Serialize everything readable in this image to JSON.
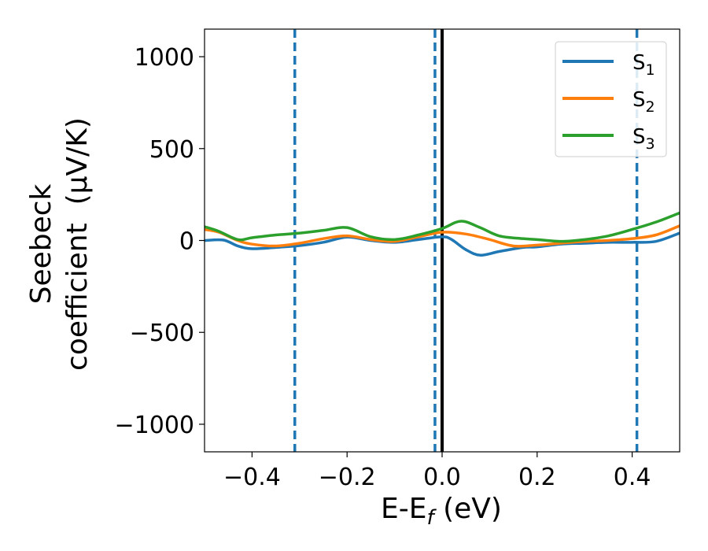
{
  "chart_data": {
    "type": "line",
    "xlabel": {
      "main": "E-E",
      "sub": "f",
      "suffix": " (eV)"
    },
    "ylabel": {
      "line1": "Seebeck",
      "line2": "coefficient  (μV/K)"
    },
    "xlim": [
      -0.5,
      0.5
    ],
    "ylim": [
      -1150,
      1150
    ],
    "xticks": [
      -0.4,
      -0.2,
      0.0,
      0.2,
      0.4
    ],
    "xtick_labels": [
      "−0.4",
      "−0.2",
      "0.0",
      "0.2",
      "0.4"
    ],
    "yticks": [
      -1000,
      -500,
      0,
      500,
      1000
    ],
    "ytick_labels": [
      "−1000",
      "−500",
      "0",
      "500",
      "1000"
    ],
    "grid": false,
    "legend_position": "top-right",
    "vlines": [
      {
        "x": -0.31,
        "style": "dashed",
        "color": "#1f77b4"
      },
      {
        "x": -0.015,
        "style": "dashed",
        "color": "#1f77b4"
      },
      {
        "x": 0.0,
        "style": "solid",
        "color": "#000000"
      },
      {
        "x": 0.41,
        "style": "dashed",
        "color": "#1f77b4"
      }
    ],
    "series": [
      {
        "name": "S",
        "sub": "1",
        "color": "#1f77b4",
        "x": [
          -0.5,
          -0.46,
          -0.43,
          -0.4,
          -0.35,
          -0.3,
          -0.25,
          -0.2,
          -0.15,
          -0.1,
          -0.05,
          0.0,
          0.02,
          0.05,
          0.08,
          0.12,
          0.17,
          0.2,
          0.25,
          0.3,
          0.35,
          0.4,
          0.45,
          0.5
        ],
        "y": [
          0,
          2,
          -30,
          -45,
          -38,
          -28,
          -10,
          18,
          0,
          -10,
          5,
          20,
          5,
          -50,
          -80,
          -60,
          -38,
          -35,
          -20,
          -15,
          -10,
          -10,
          -5,
          40
        ]
      },
      {
        "name": "S",
        "sub": "2",
        "color": "#ff7f0e",
        "x": [
          -0.5,
          -0.47,
          -0.43,
          -0.4,
          -0.35,
          -0.3,
          -0.25,
          -0.2,
          -0.15,
          -0.1,
          -0.05,
          0.0,
          0.05,
          0.1,
          0.15,
          0.2,
          0.25,
          0.3,
          0.35,
          0.4,
          0.45,
          0.5
        ],
        "y": [
          60,
          45,
          0,
          -20,
          -30,
          -15,
          10,
          25,
          5,
          -5,
          20,
          45,
          35,
          5,
          -30,
          -25,
          -15,
          -5,
          0,
          10,
          30,
          80
        ]
      },
      {
        "name": "S",
        "sub": "3",
        "color": "#2ca02c",
        "x": [
          -0.5,
          -0.47,
          -0.43,
          -0.4,
          -0.35,
          -0.3,
          -0.25,
          -0.2,
          -0.15,
          -0.1,
          -0.05,
          0.0,
          0.04,
          0.08,
          0.12,
          0.17,
          0.2,
          0.25,
          0.3,
          0.35,
          0.4,
          0.45,
          0.5
        ],
        "y": [
          75,
          50,
          5,
          15,
          30,
          40,
          55,
          70,
          20,
          5,
          30,
          65,
          105,
          70,
          25,
          10,
          5,
          -5,
          5,
          25,
          60,
          100,
          150
        ]
      }
    ]
  }
}
